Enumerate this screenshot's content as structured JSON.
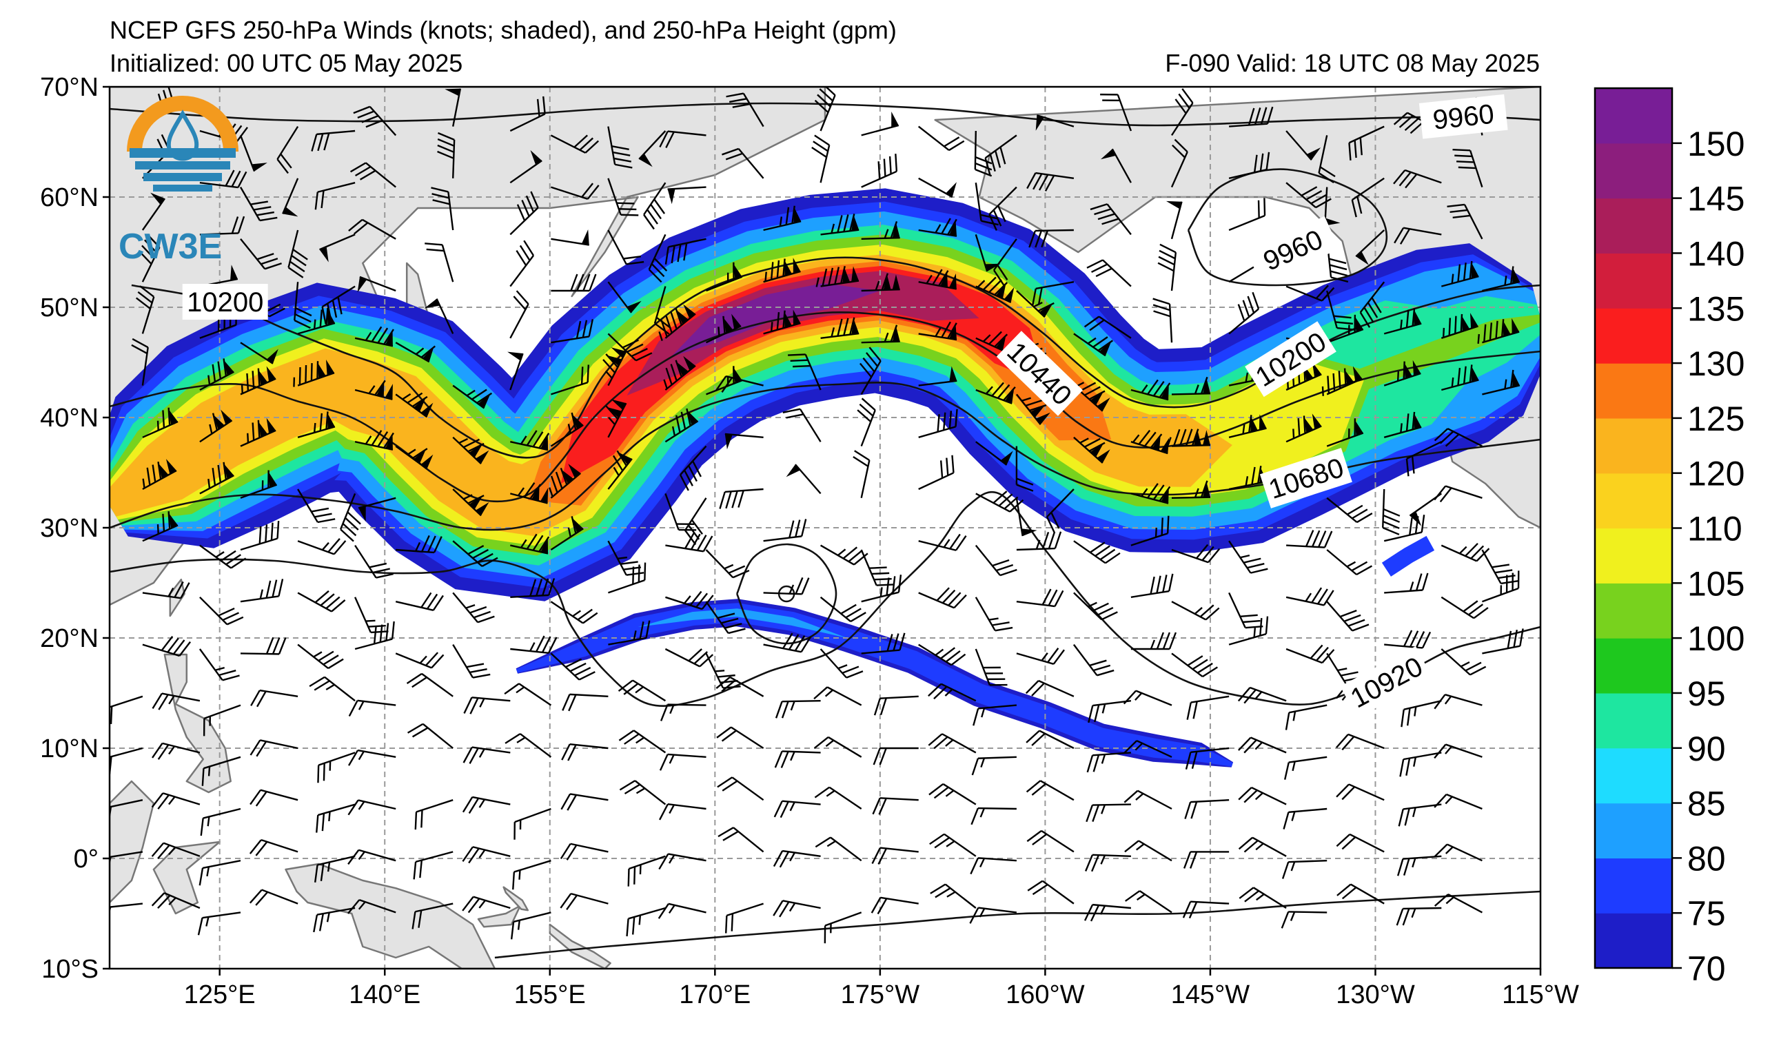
{
  "header": {
    "title_line1": "NCEP GFS 250-hPa Winds (knots; shaded), and 250-hPa Height (gpm)",
    "title_line2_left": "Initialized: 00 UTC 05 May 2025",
    "title_line2_right": "F-090  Valid: 18 UTC 08 May 2025"
  },
  "logo": {
    "text": "CW3E"
  },
  "map": {
    "projection": "cylindrical",
    "lon_range": [
      115,
      245
    ],
    "lat_range": [
      -10,
      70
    ],
    "lat_ticks": [
      {
        "value": 70,
        "label": "70°N"
      },
      {
        "value": 60,
        "label": "60°N"
      },
      {
        "value": 50,
        "label": "50°N"
      },
      {
        "value": 40,
        "label": "40°N"
      },
      {
        "value": 30,
        "label": "30°N"
      },
      {
        "value": 20,
        "label": "20°N"
      },
      {
        "value": 10,
        "label": "10°N"
      },
      {
        "value": 0,
        "label": "0°"
      },
      {
        "value": -10,
        "label": "10°S"
      }
    ],
    "lon_ticks": [
      {
        "value": 125,
        "label": "125°E"
      },
      {
        "value": 140,
        "label": "140°E"
      },
      {
        "value": 155,
        "label": "155°E"
      },
      {
        "value": 170,
        "label": "170°E"
      },
      {
        "value": 185,
        "label": "175°W"
      },
      {
        "value": 200,
        "label": "160°W"
      },
      {
        "value": 215,
        "label": "145°W"
      },
      {
        "value": 230,
        "label": "130°W"
      },
      {
        "value": 245,
        "label": "115°W"
      }
    ],
    "grid": true,
    "land_color": "#e3e3e3",
    "coast_color": "#777777",
    "contour_labels": [
      {
        "label": "10200",
        "lon": 125.5,
        "lat": 50.5,
        "rotation": 0
      },
      {
        "label": "9960",
        "lon": 238,
        "lat": 67.3,
        "rotation": -6
      },
      {
        "label": "9960",
        "lon": 222.5,
        "lat": 55.2,
        "rotation": -24
      },
      {
        "label": "10200",
        "lon": 222.3,
        "lat": 45.3,
        "rotation": -32
      },
      {
        "label": "10440",
        "lon": 199.5,
        "lat": 44,
        "rotation": 44
      },
      {
        "label": "10680",
        "lon": 223.7,
        "lat": 34.5,
        "rotation": -18
      },
      {
        "label": "10920",
        "lon": 231,
        "lat": 16,
        "rotation": -28
      }
    ]
  },
  "colorbar": {
    "levels": [
      70,
      75,
      80,
      85,
      90,
      95,
      100,
      105,
      110,
      120,
      125,
      130,
      135,
      140,
      145,
      150
    ],
    "colors": [
      "#1e1ec8",
      "#1e3cff",
      "#1ea0ff",
      "#1edcff",
      "#1ee6a0",
      "#1ec81e",
      "#78d21e",
      "#f0f01e",
      "#fad21e",
      "#fab41e",
      "#fa7814",
      "#fa1e1e",
      "#d21e3c",
      "#aa1e5a",
      "#8c1e7d",
      "#781e96"
    ],
    "tick_labels": [
      "70",
      "75",
      "80",
      "85",
      "90",
      "95",
      "100",
      "105",
      "110",
      "120",
      "125",
      "130",
      "135",
      "140",
      "145",
      "150"
    ]
  }
}
